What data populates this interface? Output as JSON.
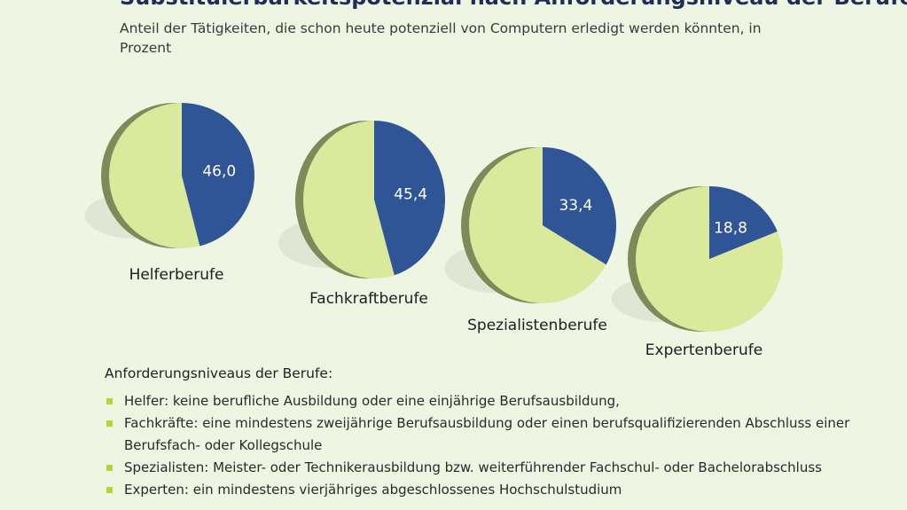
{
  "title": "Substituierbarkeitspotenzial nach Anforderungsniveau der Berufe",
  "subtitle": "Anteil der Tätigkeiten, die schon heute potenziell von Computern erledigt werden könnten, in Prozent",
  "colors": {
    "background": "#eef5e2",
    "substitutable": "#2f5597",
    "remainder": "#dbe99d",
    "edge": "#7f8a5a",
    "bullet": "#b7d334"
  },
  "chart_data": {
    "type": "pie",
    "categories": [
      "Helferberufe",
      "Fachkraftberufe",
      "Spezialistenberufe",
      "Expertenberufe"
    ],
    "values": [
      46.0,
      45.4,
      33.4,
      18.8
    ],
    "value_labels": [
      "46,0",
      "45,4",
      "33,4",
      "18,8"
    ],
    "unit": "%"
  },
  "legend": {
    "title": "Anforderungsniveaus der Berufe:",
    "items": [
      "Helfer: keine berufliche Ausbildung oder eine einjährige Berufsausbildung,",
      "Fachkräfte: eine mindestens zweijährige Berufsausbildung oder einen berufsqualifizierenden Abschluss einer Berufsfach- oder Kollegschule",
      "Spezialisten: Meister- oder Technikerausbildung bzw. weiterführender Fachschul- oder Bachelorabschluss",
      "Experten: ein mindestens vierjähriges abgeschlossenes Hochschulstudium"
    ]
  }
}
